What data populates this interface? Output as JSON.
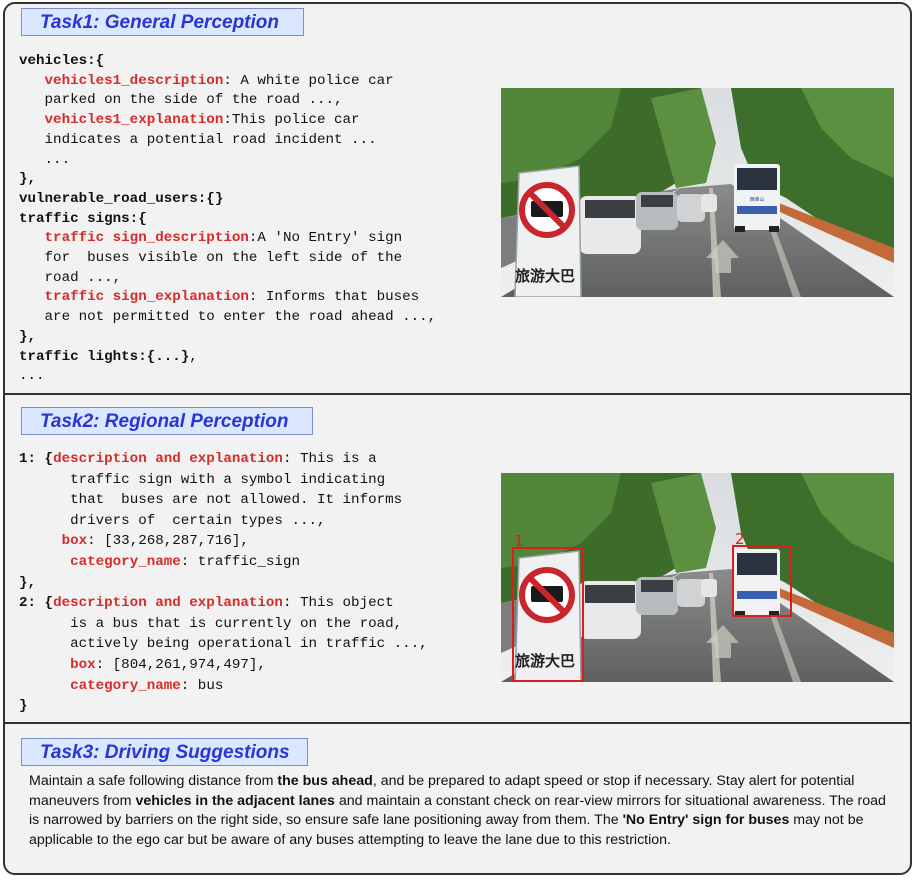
{
  "task1": {
    "title": "Task1: General Perception",
    "code": {
      "vehicles_key": "vehicles:{",
      "veh_desc_key": "vehicles1_description",
      "veh_desc_val_1": ": A white police car",
      "veh_desc_val_2": "parked on the side of the road ...,",
      "veh_expl_key": "vehicles1_explanation",
      "veh_expl_val_1": ":This police car",
      "veh_expl_val_2": "indicates a potential road incident ...",
      "veh_ellipsis": "...",
      "close_1": "},",
      "vru": "vulnerable_road_users:{}",
      "signs_key": "traffic signs:{",
      "sign_desc_key": "traffic sign_description",
      "sign_desc_val_1": ":A 'No Entry' sign",
      "sign_desc_val_2": "for  buses visible on the left side of the",
      "sign_desc_val_3": "road ...,",
      "sign_expl_key": "traffic sign_explanation",
      "sign_expl_val_1": ": Informs that buses",
      "sign_expl_val_2": "are not permitted to enter the road ahead ...,",
      "close_2": "},",
      "lights": "traffic lights:{...}",
      "lights_comma": ",",
      "tail": "..."
    },
    "image": {
      "sign_text": "旅游大巴",
      "bus_label": "西峰山"
    }
  },
  "task2": {
    "title": "Task2: Regional Perception",
    "items": [
      {
        "num": "1:",
        "open": "{",
        "de_key": "description and explanation",
        "de_val_1": ": This is a",
        "de_val_2": "traffic sign with a symbol indicating",
        "de_val_3": "that  buses are not allowed. It informs",
        "de_val_4": "drivers of  certain types ...,",
        "box_key": "box",
        "box_val": ": [33,268,287,716],",
        "cat_key": "category_name",
        "cat_val": ": traffic_sign",
        "close": "},"
      },
      {
        "num": "2:",
        "open": "{",
        "de_key": "description and explanation",
        "de_val_1": ": This object",
        "de_val_2": "is a bus that is currently on the road,",
        "de_val_3": "actively being operational in traffic ...,",
        "box_key": "box",
        "box_val": ": [804,261,974,497],",
        "cat_key": "category_name",
        "cat_val": ": bus",
        "close": "}"
      }
    ],
    "image": {
      "label_1": "1",
      "label_2": "2",
      "sign_text": "旅游大巴"
    },
    "box_color": "#e01b1b"
  },
  "task3": {
    "title": "Task3: Driving Suggestions",
    "p1": "Maintain a safe following distance from ",
    "b1": "the bus ahead",
    "p2": ", and be prepared to adapt speed or stop if necessary.  Stay alert for potential maneuvers from ",
    "b2": "vehicles in the adjacent lanes",
    "p3": " and maintain a constant check on rear-view mirrors for situational awareness.  The road is narrowed by barriers on the right side, so ensure safe lane positioning away from them.  The ",
    "b3": "'No Entry' sign for buses",
    "p4": " may not be applicable to the ego car but be aware of any buses attempting to leave the lane due to this restriction."
  },
  "colors": {
    "title_text": "#2a35d4",
    "title_bg": "#dbe7ff",
    "key_red": "#d62b2b"
  }
}
